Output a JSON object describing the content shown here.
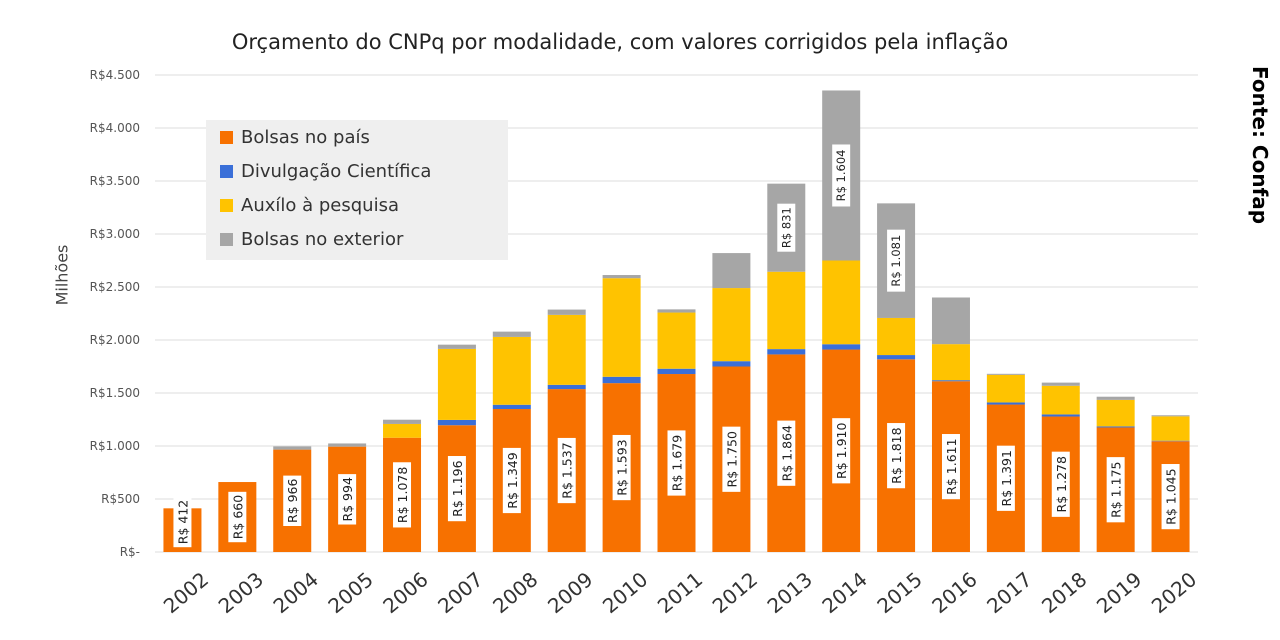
{
  "chart_data": {
    "type": "bar",
    "stacked": true,
    "title": "Orçamento do CNPq por modalidade, com valores corrigidos pela inflação",
    "ylabel": "Milhões",
    "xlabel": "",
    "ylim": [
      0,
      4500
    ],
    "ytick_labels": [
      "R$-",
      "R$500",
      "R$1.000",
      "R$1.500",
      "R$2.000",
      "R$2.500",
      "R$3.000",
      "R$3.500",
      "R$4.000",
      "R$4.500"
    ],
    "grid": true,
    "legend_position": "top-left",
    "categories": [
      "2002",
      "2003",
      "2004",
      "2005",
      "2006",
      "2007",
      "2008",
      "2009",
      "2010",
      "2011",
      "2012",
      "2013",
      "2014",
      "2015",
      "2016",
      "2017",
      "2018",
      "2019",
      "2020"
    ],
    "series": [
      {
        "name": "Bolsas no país",
        "color": "#f77100",
        "values": [
          412,
          660,
          966,
          994,
          1078,
          1196,
          1349,
          1537,
          1593,
          1679,
          1750,
          1864,
          1910,
          1818,
          1611,
          1391,
          1278,
          1175,
          1045
        ]
      },
      {
        "name": "Divulgação Científica",
        "color": "#3a6fd8",
        "values": [
          0,
          0,
          0,
          0,
          0,
          50,
          40,
          40,
          60,
          50,
          50,
          50,
          50,
          40,
          10,
          20,
          20,
          10,
          5
        ]
      },
      {
        "name": "Auxílo à pesquisa",
        "color": "#ffc300",
        "values": [
          0,
          0,
          0,
          0,
          130,
          670,
          640,
          660,
          930,
          530,
          690,
          730,
          790,
          350,
          340,
          260,
          270,
          250,
          230
        ]
      },
      {
        "name": "Bolsas no exterior",
        "color": "#a6a6a6",
        "values": [
          0,
          0,
          30,
          30,
          40,
          40,
          50,
          50,
          30,
          30,
          330,
          831,
          1604,
          1081,
          440,
          10,
          30,
          30,
          10
        ]
      }
    ],
    "bar_labels": [
      "R$ 412",
      "R$ 660",
      "R$ 966",
      "R$ 994",
      "R$ 1.078",
      "R$ 1.196",
      "R$ 1.349",
      "R$ 1.537",
      "R$ 1.593",
      "R$ 1.679",
      "R$ 1.750",
      "R$ 1.864",
      "R$ 1.910",
      "R$ 1.818",
      "R$ 1.611",
      "R$ 1.391",
      "R$ 1.278",
      "R$ 1.175",
      "R$ 1.045"
    ],
    "exterior_labels": [
      {
        "category": "2013",
        "label": "R$ 831"
      },
      {
        "category": "2014",
        "label": "R$ 1.604"
      },
      {
        "category": "2015",
        "label": "R$ 1.081"
      }
    ]
  },
  "source": "Fonte: Confap"
}
